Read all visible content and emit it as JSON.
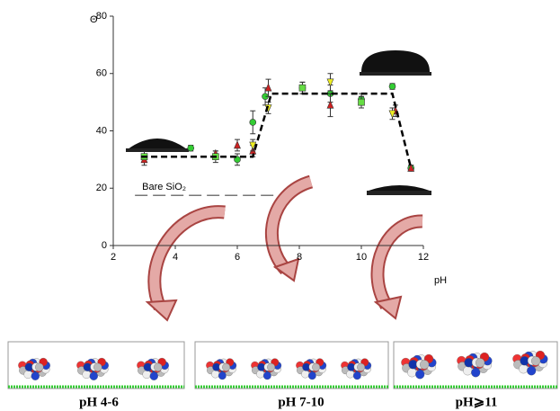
{
  "chart_data": {
    "type": "scatter",
    "xlabel": "pH",
    "ylabel": "Θ",
    "xlim": [
      2,
      12
    ],
    "xticks": [
      2,
      4,
      6,
      8,
      10,
      12
    ],
    "ylim": [
      0,
      80
    ],
    "yticks": [
      0,
      20,
      40,
      60,
      80
    ],
    "series": [
      {
        "marker": "circle",
        "color": "#33cc33",
        "x": [
          3,
          4.5,
          5.3,
          6,
          6.5,
          6.9,
          8.1,
          9,
          10,
          11,
          11.6
        ],
        "values": [
          31,
          34,
          31,
          30,
          43,
          52,
          55,
          53,
          51,
          55.5,
          27
        ],
        "errors": [
          2,
          1,
          2,
          2,
          4,
          3,
          2,
          3,
          2,
          1,
          1
        ]
      },
      {
        "marker": "triangle",
        "color": "#cc2222",
        "x": [
          3,
          5.3,
          6,
          6.5,
          7,
          9,
          10,
          11.1,
          11.6
        ],
        "values": [
          30,
          32,
          35,
          33,
          55,
          49,
          50,
          47,
          27
        ],
        "errors": [
          2,
          1,
          2,
          2,
          3,
          4,
          2,
          2,
          1
        ]
      },
      {
        "marker": "triangle-down",
        "color": "#eeee22",
        "x": [
          6.5,
          7,
          9,
          11
        ],
        "values": [
          35,
          48,
          57,
          46
        ],
        "errors": [
          2,
          2,
          3,
          2
        ]
      },
      {
        "marker": "square",
        "color": "#66dd44",
        "x": [
          3,
          5.3,
          8.1,
          10
        ],
        "values": [
          31,
          31,
          55,
          50
        ],
        "errors": [
          1,
          1,
          2,
          1
        ]
      }
    ],
    "fit": {
      "color": "#000000",
      "x": [
        2.9,
        6.5,
        7.1,
        11,
        11.6
      ],
      "values": [
        31,
        31,
        53,
        53,
        27
      ]
    },
    "reference": {
      "label": "Bare SiO₂",
      "color": "#777777",
      "x": [
        2.7,
        7.2
      ],
      "values": [
        17.5,
        17.5
      ]
    },
    "panels": [
      "pH 4-6",
      "pH 7-10",
      "pH⩾11"
    ]
  }
}
